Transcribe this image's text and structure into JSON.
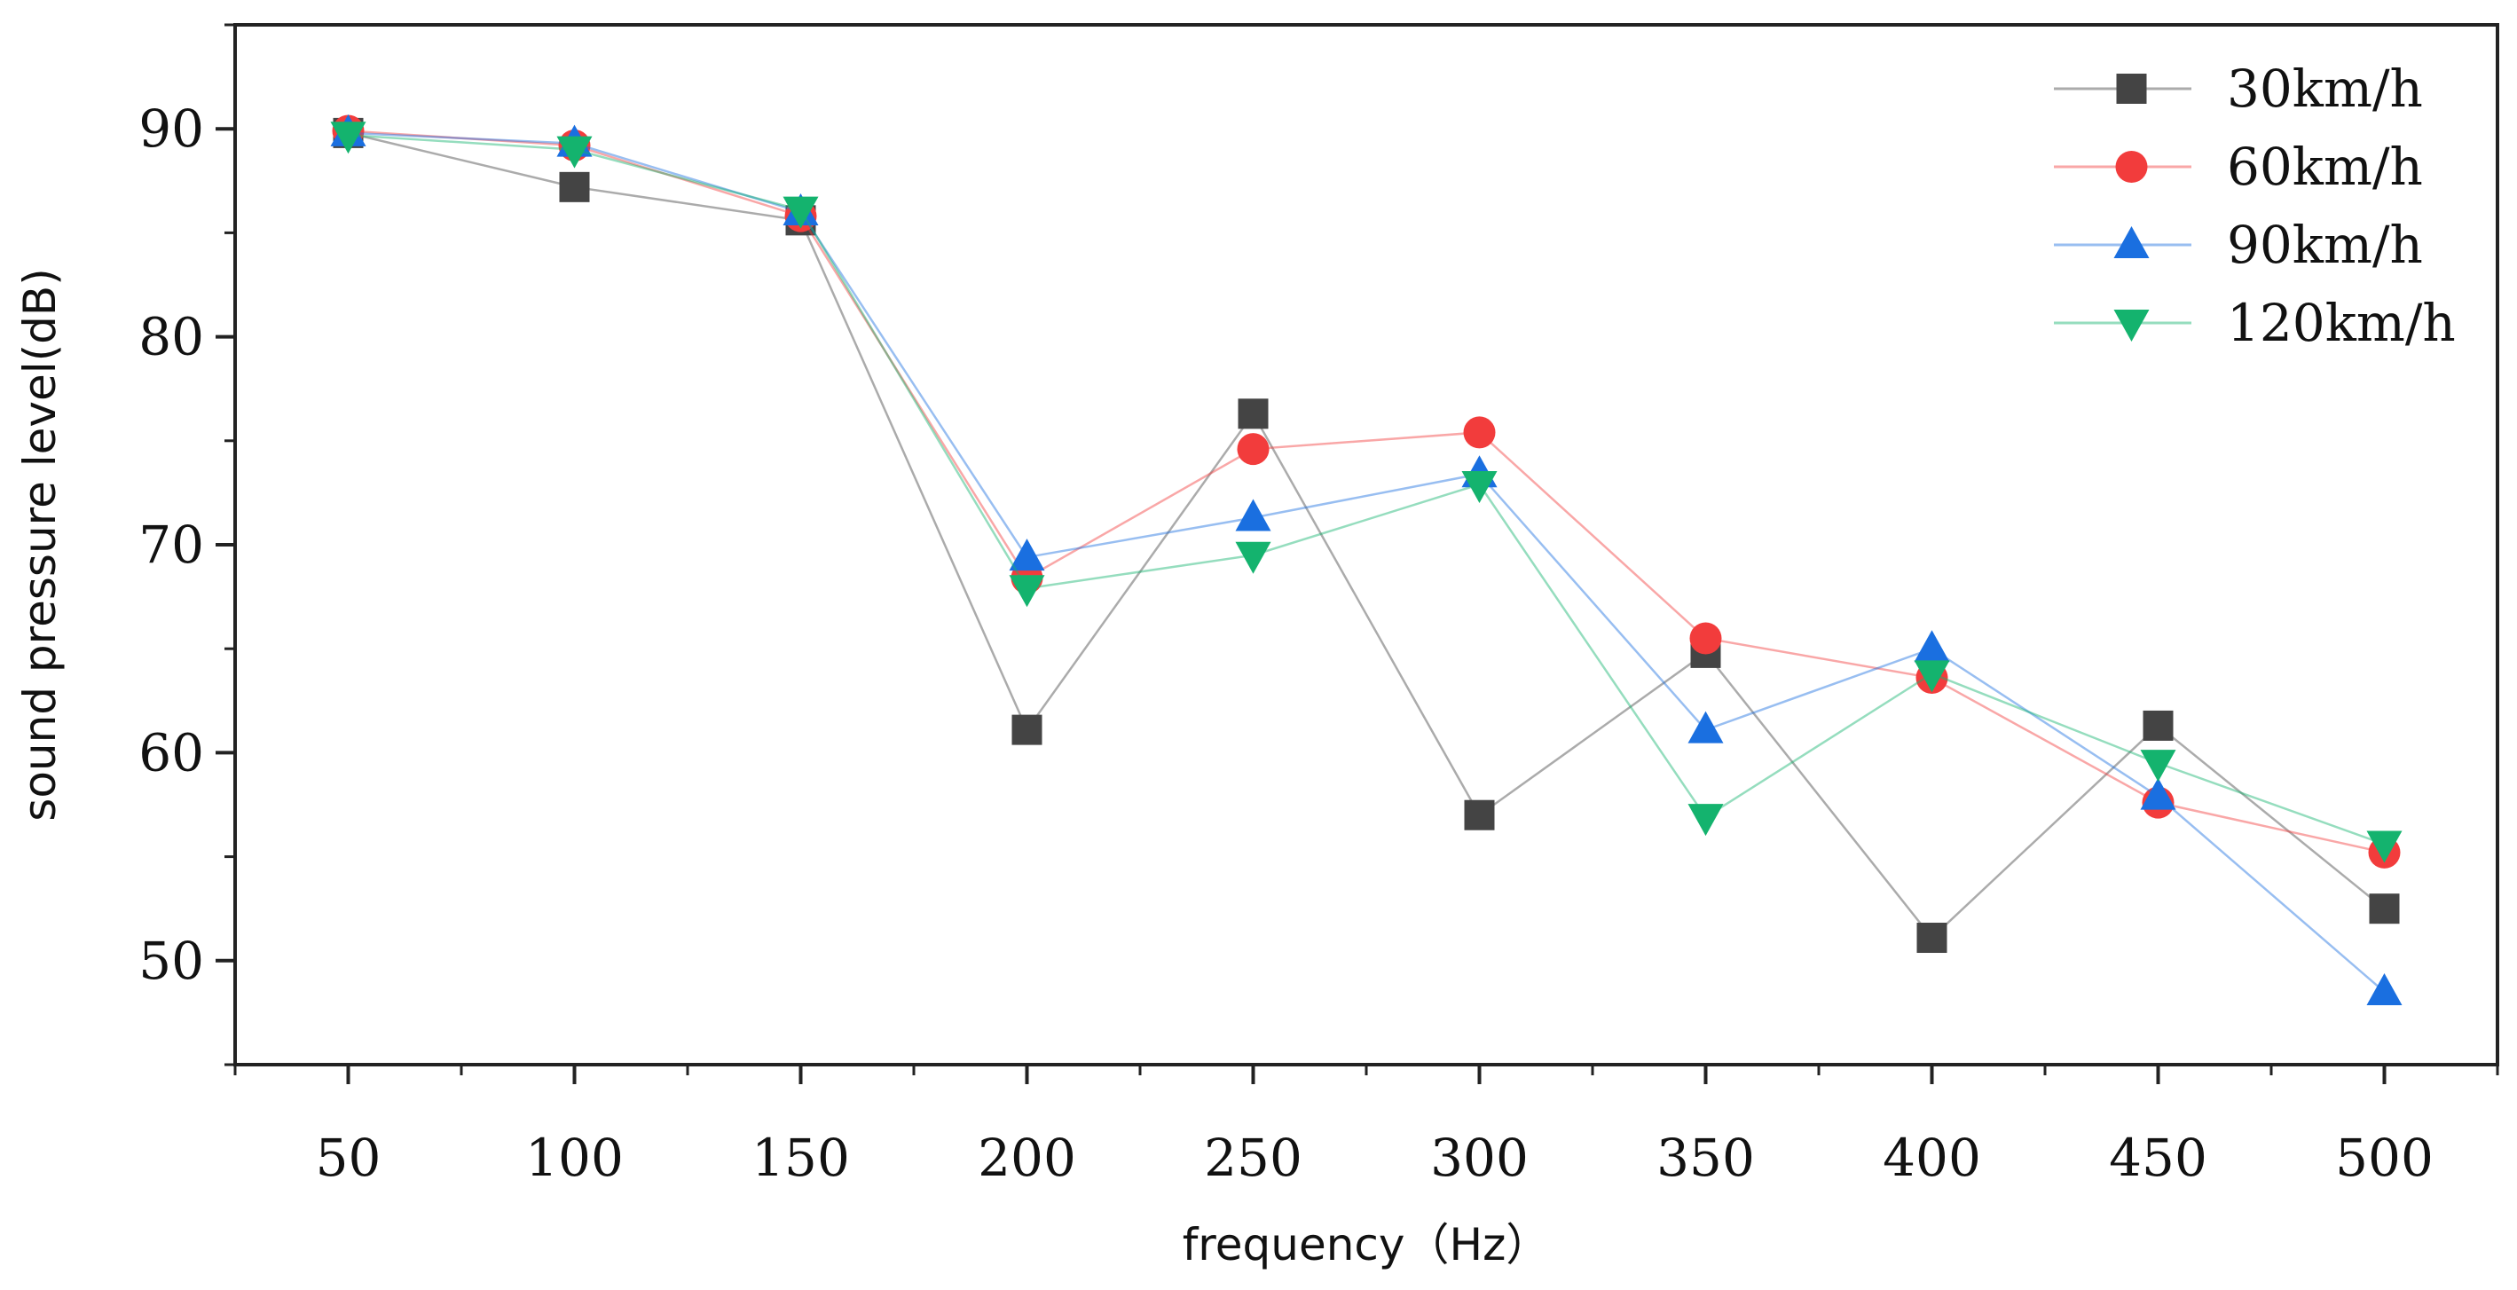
{
  "chart_data": {
    "type": "line",
    "title": "",
    "xlabel": "frequency（Hz）",
    "ylabel": "sound pressure level(dB)",
    "x": [
      50,
      100,
      150,
      200,
      250,
      300,
      350,
      400,
      450,
      500
    ],
    "x_tick_labels": [
      "50",
      "100",
      "150",
      "200",
      "250",
      "300",
      "350",
      "400",
      "450",
      "500"
    ],
    "y_ticks": [
      50,
      60,
      70,
      80,
      90
    ],
    "y_tick_labels": [
      "50",
      "60",
      "70",
      "80",
      "90"
    ],
    "xlim": [
      25,
      525
    ],
    "ylim": [
      45,
      95
    ],
    "grid": false,
    "legend_position": "top-right",
    "series": [
      {
        "name": "30km/h",
        "color": "#444444",
        "marker": "square",
        "values": [
          89.8,
          87.2,
          85.6,
          61.1,
          76.3,
          57.0,
          64.8,
          51.1,
          61.3,
          52.5
        ]
      },
      {
        "name": "60km/h",
        "color": "#f23c3c",
        "marker": "circle",
        "values": [
          89.9,
          89.2,
          85.8,
          68.4,
          74.6,
          75.4,
          65.5,
          63.6,
          57.6,
          55.2
        ]
      },
      {
        "name": "90km/h",
        "color": "#1a6fe0",
        "marker": "triangle-up",
        "values": [
          89.8,
          89.3,
          86.0,
          69.4,
          71.3,
          73.4,
          61.1,
          65.0,
          57.9,
          48.5
        ]
      },
      {
        "name": "120km/h",
        "color": "#14b36e",
        "marker": "triangle-down",
        "values": [
          89.7,
          89.0,
          86.1,
          67.9,
          69.5,
          72.9,
          56.9,
          63.8,
          59.5,
          55.6
        ]
      }
    ]
  }
}
